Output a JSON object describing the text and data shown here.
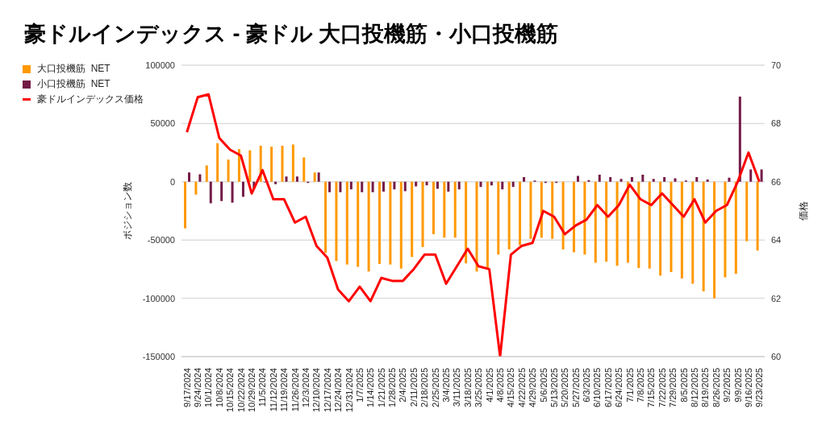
{
  "chart_data": {
    "type": "bar",
    "title": "豪ドルインデックス - 豪ドル 大口投機筋・小口投機筋",
    "ylabel": "ポジション数",
    "y2label": "価格",
    "categories": [
      "9/17/2024",
      "9/24/2024",
      "10/1/2024",
      "10/8/2024",
      "10/15/2024",
      "10/22/2024",
      "10/29/2024",
      "11/5/2024",
      "11/12/2024",
      "11/19/2024",
      "11/26/2024",
      "12/3/2024",
      "12/10/2024",
      "12/17/2024",
      "12/24/2024",
      "12/31/2024",
      "1/7/2025",
      "1/14/2025",
      "1/21/2025",
      "1/28/2025",
      "2/4/2025",
      "2/11/2025",
      "2/18/2025",
      "2/25/2025",
      "3/4/2025",
      "3/11/2025",
      "3/18/2025",
      "3/25/2025",
      "4/1/2025",
      "4/8/2025",
      "4/15/2025",
      "4/22/2025",
      "4/29/2025",
      "5/6/2025",
      "5/13/2025",
      "5/20/2025",
      "5/27/2025",
      "6/3/2025",
      "6/10/2025",
      "6/17/2025",
      "6/24/2025",
      "7/1/2025",
      "7/8/2025",
      "7/15/2025",
      "7/22/2025",
      "7/29/2025",
      "8/5/2025",
      "8/12/2025",
      "8/19/2025",
      "8/26/2025",
      "9/2/2025",
      "9/9/2025",
      "9/16/2025",
      "9/23/2025"
    ],
    "series": [
      {
        "name": "大口投機筋  NET",
        "color": "#ff9900",
        "values": [
          -40000,
          -11000,
          14000,
          33000,
          19000,
          28000,
          27000,
          31000,
          30000,
          31000,
          32000,
          21000,
          8000,
          -61000,
          -68000,
          -71000,
          -73000,
          -77000,
          -70500,
          -71000,
          -74500,
          -64500,
          -56000,
          -45000,
          -48000,
          -48000,
          -70000,
          -77000,
          -74500,
          -62500,
          -58000,
          -54500,
          -49000,
          -48000,
          -49000,
          -58000,
          -60500,
          -62500,
          -69500,
          -68500,
          -72000,
          -69500,
          -74000,
          -74500,
          -80500,
          -77500,
          -83000,
          -87500,
          -94000,
          -100000,
          -82000,
          -79000,
          -51000,
          -59000
        ]
      },
      {
        "name": "小口投機筋  NET",
        "color": "#741b47",
        "values": [
          8000,
          6500,
          -18500,
          -16500,
          -18000,
          -13000,
          -6000,
          -500,
          -2000,
          4500,
          4500,
          -1000,
          8000,
          -9000,
          -9000,
          -6500,
          -9000,
          -9000,
          -8500,
          -6500,
          -8000,
          -4000,
          -3000,
          -6000,
          -8500,
          -6500,
          0,
          -4500,
          -3000,
          -6500,
          -4500,
          4000,
          1000,
          -1000,
          -1000,
          0,
          5000,
          1500,
          6000,
          4000,
          2500,
          4000,
          6000,
          2500,
          4000,
          3000,
          1000,
          4000,
          2000,
          0,
          3500,
          73000,
          10500,
          10500
        ]
      },
      {
        "name": "豪ドルインデックス価格",
        "type": "line",
        "axis": "y2",
        "color": "#ff0000",
        "values": [
          67.7,
          68.9,
          69.0,
          67.5,
          67.1,
          66.9,
          65.6,
          66.4,
          65.4,
          65.4,
          64.6,
          64.8,
          63.8,
          63.4,
          62.3,
          61.9,
          62.4,
          61.9,
          62.7,
          62.6,
          62.6,
          63.0,
          63.5,
          63.5,
          62.5,
          63.1,
          63.7,
          63.1,
          63.0,
          60.0,
          63.5,
          63.8,
          63.9,
          65.0,
          64.8,
          64.2,
          64.5,
          64.7,
          65.2,
          64.8,
          65.2,
          65.9,
          65.4,
          65.2,
          65.6,
          65.2,
          64.8,
          65.4,
          64.6,
          65.0,
          65.2,
          66.0,
          67.0,
          66.0
        ]
      }
    ],
    "ylim": [
      -150000,
      100000
    ],
    "yticks": [
      -150000,
      -100000,
      -50000,
      0,
      50000,
      100000
    ],
    "y2lim": [
      60,
      70
    ],
    "y2ticks": [
      60,
      62,
      64,
      66,
      68,
      70
    ],
    "grid": "y",
    "legend": "left",
    "marker": "none",
    "line_style": "solid"
  }
}
